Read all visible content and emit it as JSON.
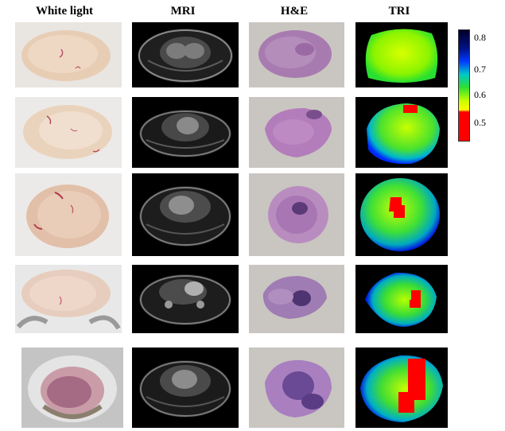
{
  "columns": {
    "white_light": "White light",
    "mri": "MRI",
    "he": "H&E",
    "tri": "TRI"
  },
  "colorbar": {
    "ticks": [
      "0.8",
      "0.7",
      "0.6",
      "0.5"
    ],
    "colors": [
      "#00002a",
      "#0038ff",
      "#30e030",
      "#ffff00",
      "#ff0000"
    ]
  },
  "rows": 5
}
